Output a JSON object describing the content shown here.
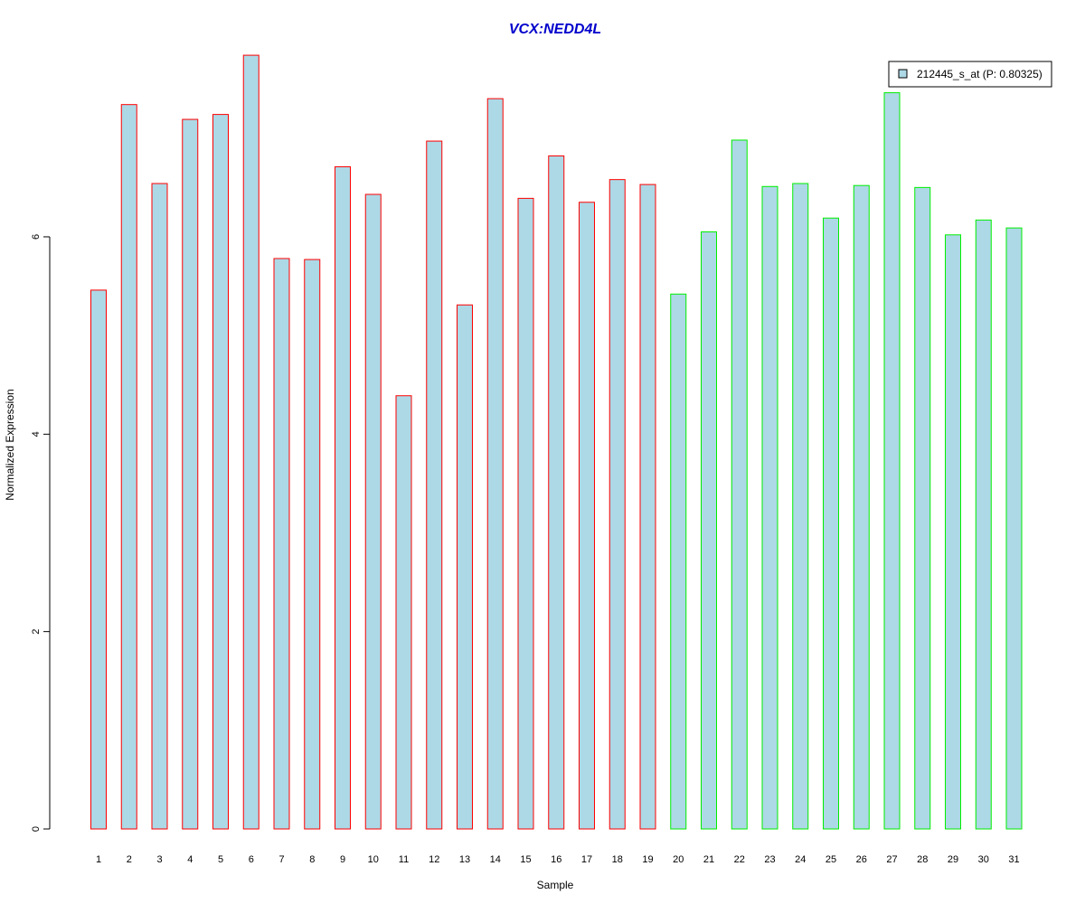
{
  "colors": {
    "title": "#0000cc",
    "bar_fill": "#add8e6",
    "group1_border": "#ff0000",
    "group2_border": "#00ee00",
    "axis": "#000000"
  },
  "chart_data": {
    "type": "bar",
    "title": "VCX:NEDD4L",
    "xlabel": "Sample",
    "ylabel": "Normalized Expression",
    "ylim": [
      0,
      7.85
    ],
    "yticks": [
      0,
      2,
      4,
      6
    ],
    "grid": false,
    "legend_position": "top-right",
    "categories": [
      "1",
      "2",
      "3",
      "4",
      "5",
      "6",
      "7",
      "8",
      "9",
      "10",
      "11",
      "12",
      "13",
      "14",
      "15",
      "16",
      "17",
      "18",
      "19",
      "20",
      "21",
      "22",
      "23",
      "24",
      "25",
      "26",
      "27",
      "28",
      "29",
      "30",
      "31"
    ],
    "series": [
      {
        "name": "212445_s_at (P: 0.80325)",
        "values": [
          5.46,
          7.34,
          6.54,
          7.19,
          7.24,
          7.84,
          5.78,
          5.77,
          6.71,
          6.43,
          4.39,
          6.97,
          5.31,
          7.4,
          6.39,
          6.82,
          6.35,
          6.58,
          6.53,
          5.42,
          6.05,
          6.98,
          6.51,
          6.54,
          6.19,
          6.52,
          7.46,
          6.5,
          6.02,
          6.17,
          6.09
        ],
        "groups": [
          1,
          1,
          1,
          1,
          1,
          1,
          1,
          1,
          1,
          1,
          1,
          1,
          1,
          1,
          1,
          1,
          1,
          1,
          1,
          2,
          2,
          2,
          2,
          2,
          2,
          2,
          2,
          2,
          2,
          2,
          2
        ]
      }
    ]
  }
}
